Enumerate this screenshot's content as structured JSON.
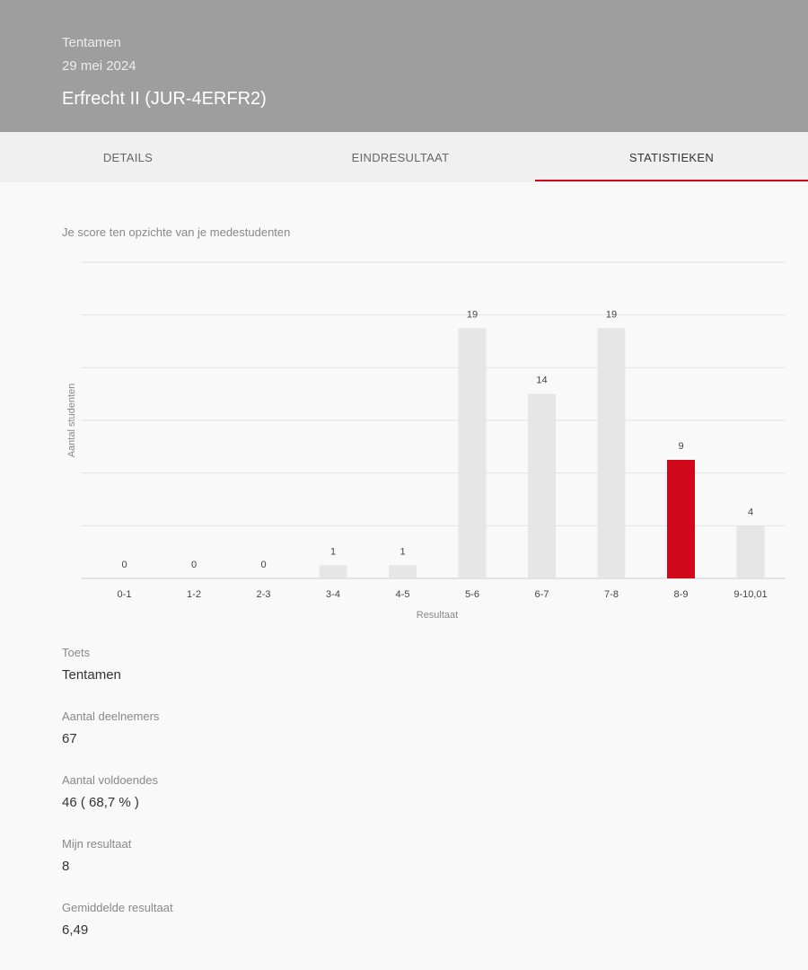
{
  "header": {
    "type": "Tentamen",
    "date": "29 mei 2024",
    "title": "Erfrecht II (JUR-4ERFR2)"
  },
  "tabs": [
    {
      "label": "DETAILS"
    },
    {
      "label": "EINDRESULTAAT"
    },
    {
      "label": "STATISTIEKEN",
      "active": true
    }
  ],
  "chart_section": {
    "subtitle": "Je score ten opzichte van je medestudenten"
  },
  "chart_data": {
    "type": "bar",
    "categories": [
      "0-1",
      "1-2",
      "2-3",
      "3-4",
      "4-5",
      "5-6",
      "6-7",
      "7-8",
      "8-9",
      "9-10,01"
    ],
    "values": [
      0,
      0,
      0,
      1,
      1,
      19,
      14,
      19,
      9,
      4
    ],
    "highlight_category": "8-9",
    "xlabel": "Resultaat",
    "ylabel": "Aantal studenten",
    "ylim": [
      0,
      24
    ],
    "grid": true,
    "data_labels": true,
    "colors": {
      "default": "#e6e6e6",
      "highlight": "#d0091a"
    }
  },
  "stats": [
    {
      "label": "Toets",
      "value": "Tentamen"
    },
    {
      "label": "Aantal deelnemers",
      "value": "67"
    },
    {
      "label": "Aantal voldoendes",
      "value": "46 ( 68,7 % )"
    },
    {
      "label": "Mijn resultaat",
      "value": "8"
    },
    {
      "label": "Gemiddelde resultaat",
      "value": "6,49"
    }
  ]
}
